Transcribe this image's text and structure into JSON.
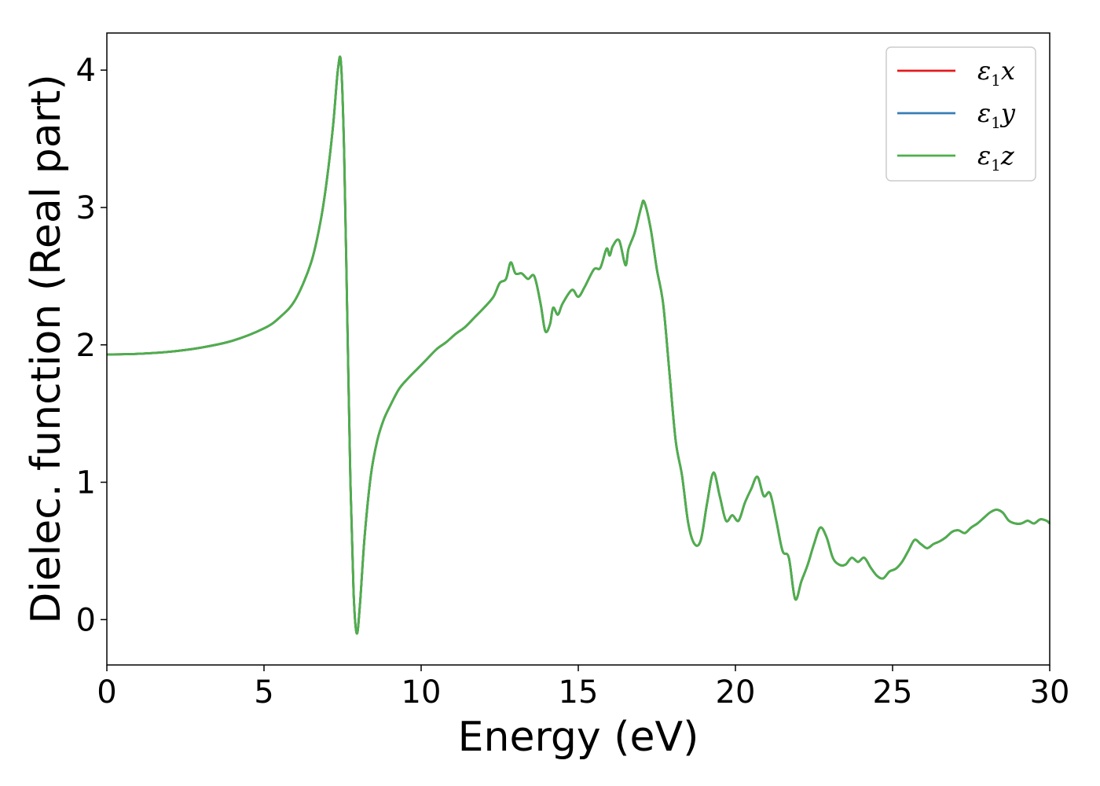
{
  "chart_data": {
    "type": "line",
    "title": "",
    "xlabel": "Energy (eV)",
    "ylabel": "Dielec. function (Real part)",
    "xlim": [
      0,
      30
    ],
    "ylim": [
      -0.33,
      4.27
    ],
    "xticks": [
      0,
      5,
      10,
      15,
      20,
      25,
      30
    ],
    "yticks": [
      0,
      1,
      2,
      3,
      4
    ],
    "grid": false,
    "legend_position": "top-right",
    "x": [
      0,
      1,
      2,
      3,
      4,
      5,
      5.5,
      6,
      6.5,
      6.8,
      7.0,
      7.2,
      7.35,
      7.45,
      7.55,
      7.65,
      7.75,
      7.85,
      7.95,
      8.05,
      8.2,
      8.4,
      8.6,
      8.8,
      9.0,
      9.3,
      9.6,
      9.9,
      10.2,
      10.5,
      10.8,
      11.1,
      11.4,
      11.7,
      12.0,
      12.3,
      12.5,
      12.7,
      12.85,
      13.0,
      13.2,
      13.4,
      13.6,
      13.8,
      13.95,
      14.1,
      14.2,
      14.35,
      14.5,
      14.8,
      15.0,
      15.2,
      15.5,
      15.7,
      15.9,
      16.0,
      16.1,
      16.3,
      16.5,
      16.6,
      16.8,
      17.0,
      17.1,
      17.3,
      17.5,
      17.7,
      17.9,
      18.1,
      18.3,
      18.5,
      18.7,
      18.9,
      19.1,
      19.3,
      19.5,
      19.7,
      19.9,
      20.1,
      20.3,
      20.5,
      20.7,
      20.9,
      21.1,
      21.3,
      21.5,
      21.7,
      21.9,
      22.1,
      22.3,
      22.5,
      22.7,
      22.9,
      23.1,
      23.3,
      23.5,
      23.7,
      23.9,
      24.1,
      24.3,
      24.5,
      24.7,
      24.9,
      25.1,
      25.3,
      25.5,
      25.7,
      25.9,
      26.1,
      26.3,
      26.5,
      26.7,
      26.9,
      27.1,
      27.3,
      27.5,
      27.7,
      27.9,
      28.1,
      28.3,
      28.5,
      28.7,
      28.9,
      29.1,
      29.3,
      29.5,
      29.7,
      29.9,
      30.0
    ],
    "series": [
      {
        "name": "ε1x",
        "color": "#e41a1c",
        "values": [
          1.93,
          1.935,
          1.95,
          1.98,
          2.03,
          2.12,
          2.2,
          2.33,
          2.6,
          2.9,
          3.2,
          3.6,
          4.0,
          4.05,
          3.4,
          2.2,
          1.0,
          0.2,
          -0.1,
          0.1,
          0.6,
          1.05,
          1.3,
          1.45,
          1.55,
          1.68,
          1.76,
          1.83,
          1.9,
          1.97,
          2.02,
          2.08,
          2.13,
          2.2,
          2.27,
          2.35,
          2.45,
          2.48,
          2.6,
          2.52,
          2.52,
          2.48,
          2.5,
          2.3,
          2.1,
          2.15,
          2.27,
          2.22,
          2.3,
          2.4,
          2.35,
          2.42,
          2.55,
          2.56,
          2.7,
          2.65,
          2.72,
          2.76,
          2.58,
          2.7,
          2.82,
          3.0,
          3.04,
          2.85,
          2.55,
          2.3,
          1.8,
          1.3,
          1.05,
          0.7,
          0.55,
          0.58,
          0.85,
          1.07,
          0.9,
          0.72,
          0.76,
          0.72,
          0.85,
          0.95,
          1.04,
          0.9,
          0.92,
          0.72,
          0.5,
          0.45,
          0.15,
          0.28,
          0.4,
          0.55,
          0.67,
          0.6,
          0.45,
          0.4,
          0.4,
          0.45,
          0.42,
          0.45,
          0.38,
          0.32,
          0.3,
          0.35,
          0.37,
          0.42,
          0.5,
          0.58,
          0.55,
          0.52,
          0.55,
          0.57,
          0.6,
          0.64,
          0.65,
          0.63,
          0.67,
          0.7,
          0.74,
          0.78,
          0.8,
          0.78,
          0.72,
          0.7,
          0.7,
          0.72,
          0.7,
          0.73,
          0.72,
          0.7
        ]
      },
      {
        "name": "ε1y",
        "color": "#377eb8",
        "values": [
          1.93,
          1.935,
          1.95,
          1.98,
          2.03,
          2.12,
          2.2,
          2.33,
          2.6,
          2.9,
          3.2,
          3.6,
          4.0,
          4.05,
          3.4,
          2.2,
          1.0,
          0.2,
          -0.1,
          0.1,
          0.6,
          1.05,
          1.3,
          1.45,
          1.55,
          1.68,
          1.76,
          1.83,
          1.9,
          1.97,
          2.02,
          2.08,
          2.13,
          2.2,
          2.27,
          2.35,
          2.45,
          2.48,
          2.6,
          2.52,
          2.52,
          2.48,
          2.5,
          2.3,
          2.1,
          2.15,
          2.27,
          2.22,
          2.3,
          2.4,
          2.35,
          2.42,
          2.55,
          2.56,
          2.7,
          2.65,
          2.72,
          2.76,
          2.58,
          2.7,
          2.82,
          3.0,
          3.04,
          2.85,
          2.55,
          2.3,
          1.8,
          1.3,
          1.05,
          0.7,
          0.55,
          0.58,
          0.85,
          1.07,
          0.9,
          0.72,
          0.76,
          0.72,
          0.85,
          0.95,
          1.04,
          0.9,
          0.92,
          0.72,
          0.5,
          0.45,
          0.15,
          0.28,
          0.4,
          0.55,
          0.67,
          0.6,
          0.45,
          0.4,
          0.4,
          0.45,
          0.42,
          0.45,
          0.38,
          0.32,
          0.3,
          0.35,
          0.37,
          0.42,
          0.5,
          0.58,
          0.55,
          0.52,
          0.55,
          0.57,
          0.6,
          0.64,
          0.65,
          0.63,
          0.67,
          0.7,
          0.74,
          0.78,
          0.8,
          0.78,
          0.72,
          0.7,
          0.7,
          0.72,
          0.7,
          0.73,
          0.72,
          0.7
        ]
      },
      {
        "name": "ε1z",
        "color": "#4daf4a",
        "values": [
          1.93,
          1.935,
          1.95,
          1.98,
          2.03,
          2.12,
          2.2,
          2.33,
          2.6,
          2.9,
          3.2,
          3.6,
          4.0,
          4.05,
          3.4,
          2.2,
          1.0,
          0.2,
          -0.1,
          0.1,
          0.6,
          1.05,
          1.3,
          1.45,
          1.55,
          1.68,
          1.76,
          1.83,
          1.9,
          1.97,
          2.02,
          2.08,
          2.13,
          2.2,
          2.27,
          2.35,
          2.45,
          2.48,
          2.6,
          2.52,
          2.52,
          2.48,
          2.5,
          2.3,
          2.1,
          2.15,
          2.27,
          2.22,
          2.3,
          2.4,
          2.35,
          2.42,
          2.55,
          2.56,
          2.7,
          2.65,
          2.72,
          2.76,
          2.58,
          2.7,
          2.82,
          3.0,
          3.04,
          2.85,
          2.55,
          2.3,
          1.8,
          1.3,
          1.05,
          0.7,
          0.55,
          0.58,
          0.85,
          1.07,
          0.9,
          0.72,
          0.76,
          0.72,
          0.85,
          0.95,
          1.04,
          0.9,
          0.92,
          0.72,
          0.5,
          0.45,
          0.15,
          0.28,
          0.4,
          0.55,
          0.67,
          0.6,
          0.45,
          0.4,
          0.4,
          0.45,
          0.42,
          0.45,
          0.38,
          0.32,
          0.3,
          0.35,
          0.37,
          0.42,
          0.5,
          0.58,
          0.55,
          0.52,
          0.55,
          0.57,
          0.6,
          0.64,
          0.65,
          0.63,
          0.67,
          0.7,
          0.74,
          0.78,
          0.8,
          0.78,
          0.72,
          0.7,
          0.7,
          0.72,
          0.7,
          0.73,
          0.72,
          0.7
        ]
      }
    ]
  }
}
